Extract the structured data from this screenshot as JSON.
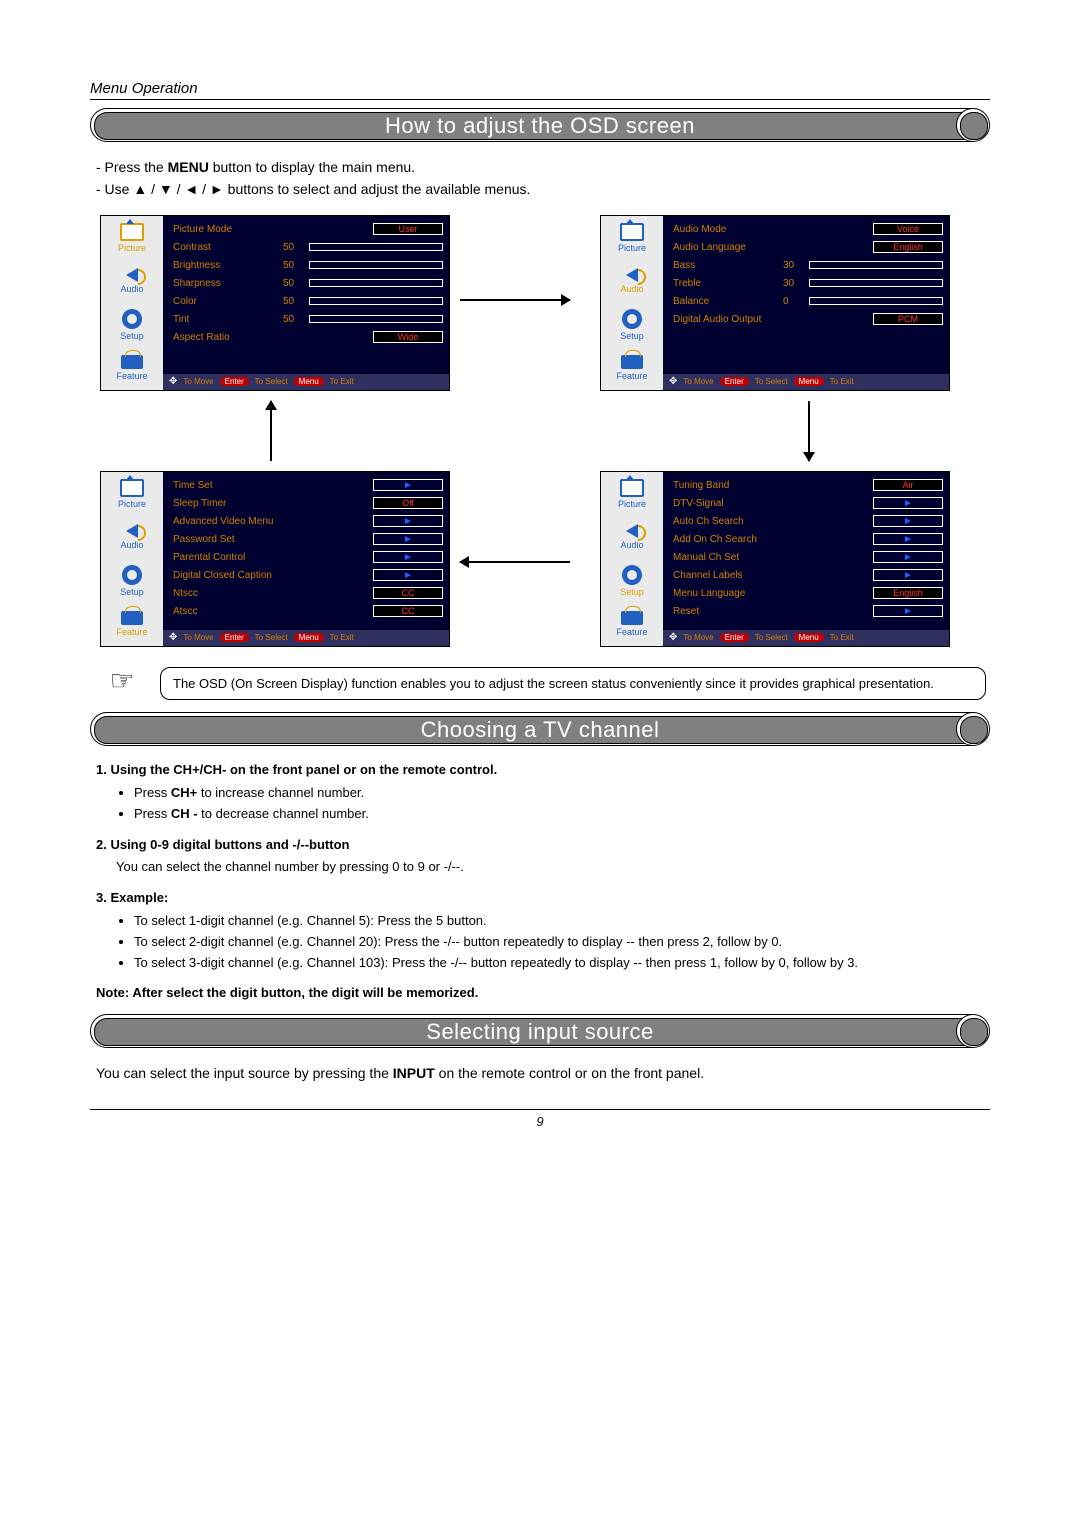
{
  "page": {
    "section_header": "Menu Operation",
    "page_number": "9"
  },
  "titles": {
    "osd": "How to adjust the OSD screen",
    "channel": "Choosing a TV channel",
    "input": "Selecting input source"
  },
  "osd_intro": {
    "line1_pre": "- Press the ",
    "line1_bold": "MENU",
    "line1_post": " button to display the main menu.",
    "line2": "- Use ▲ / ▼ / ◄ / ► buttons to select and adjust the available menus."
  },
  "sidebar_labels": [
    "Picture",
    "Audio",
    "Setup",
    "Feature"
  ],
  "footer": {
    "move": "To Move",
    "enter": "Enter",
    "select": "To Select",
    "menu": "Menu",
    "exit": "To Exit"
  },
  "panels": {
    "picture": {
      "active_index": 0,
      "rows": [
        {
          "label": "Picture Mode",
          "chip": "User"
        },
        {
          "label": "Contrast",
          "value": "50",
          "bar": 50
        },
        {
          "label": "Brightness",
          "value": "50",
          "bar": 50
        },
        {
          "label": "Sharpness",
          "value": "50",
          "bar": 50
        },
        {
          "label": "Color",
          "value": "50",
          "bar": 50
        },
        {
          "label": "Tint",
          "value": "50",
          "bar": 50
        },
        {
          "label": "Aspect Ratio",
          "chip": "Wide"
        }
      ]
    },
    "audio": {
      "active_index": 1,
      "rows": [
        {
          "label": "Audio Mode",
          "chip": "Voice"
        },
        {
          "label": "Audio Language",
          "chip": "English"
        },
        {
          "label": "Bass",
          "value": "30",
          "bar": 30
        },
        {
          "label": "Treble",
          "value": "30",
          "bar": 30
        },
        {
          "label": "Balance",
          "value": "0",
          "bar": 50
        },
        {
          "label": "Digital Audio Output",
          "chip": "PCM"
        }
      ]
    },
    "feature": {
      "active_index": 3,
      "rows": [
        {
          "label": "Time Set",
          "arrow": true
        },
        {
          "label": "Sleep Timer",
          "chip": "Off"
        },
        {
          "label": "Advanced Video Menu",
          "arrow": true
        },
        {
          "label": "Password Set",
          "arrow": true
        },
        {
          "label": "Parental Control",
          "arrow": true
        },
        {
          "label": "Digital Closed Caption",
          "arrow": true
        },
        {
          "label": "Ntscc",
          "chip": "CC"
        },
        {
          "label": "Atscc",
          "chip": "CC"
        }
      ]
    },
    "setup": {
      "active_index": 2,
      "rows": [
        {
          "label": "Tuning Band",
          "chip": "Air"
        },
        {
          "label": "DTV-Signal",
          "arrow": true
        },
        {
          "label": "Auto Ch Search",
          "arrow": true
        },
        {
          "label": "Add On Ch Search",
          "arrow": true
        },
        {
          "label": "Manual Ch Set",
          "arrow": true
        },
        {
          "label": "Channel Labels",
          "arrow": true
        },
        {
          "label": "Menu Language",
          "chip": "English"
        },
        {
          "label": "Reset",
          "arrow": true
        }
      ]
    }
  },
  "note": "The OSD (On Screen Display) function enables you to adjust the screen status conveniently since it provides graphical presentation.",
  "channel": {
    "h1": "1. Using the CH+/CH- on the front panel or on the remote control.",
    "b1a_pre": "Press ",
    "b1a_bold": "CH+",
    "b1a_post": " to increase channel number.",
    "b1b_pre": "Press ",
    "b1b_bold": "CH -",
    "b1b_post": " to decrease channel number.",
    "h2": "2. Using 0-9 digital buttons and -/--button",
    "p2": "You can select the channel number by pressing 0 to 9 or -/--.",
    "h3": "3. Example:",
    "ex1": "To select 1-digit channel (e.g. Channel 5): Press the 5 button.",
    "ex2": "To select 2-digit channel (e.g. Channel 20): Press the -/-- button repeatedly to display -- then press 2, follow by 0.",
    "ex3": "To select 3-digit channel (e.g. Channel 103): Press the -/-- button repeatedly to display -- then press 1, follow by 0, follow by 3.",
    "note": "Note: After select the digit button, the digit will be memorized."
  },
  "input_source": {
    "text_pre": "You can select the input source by pressing the  ",
    "text_bold": "INPUT",
    "text_post": " on the remote control or on the  front panel."
  }
}
